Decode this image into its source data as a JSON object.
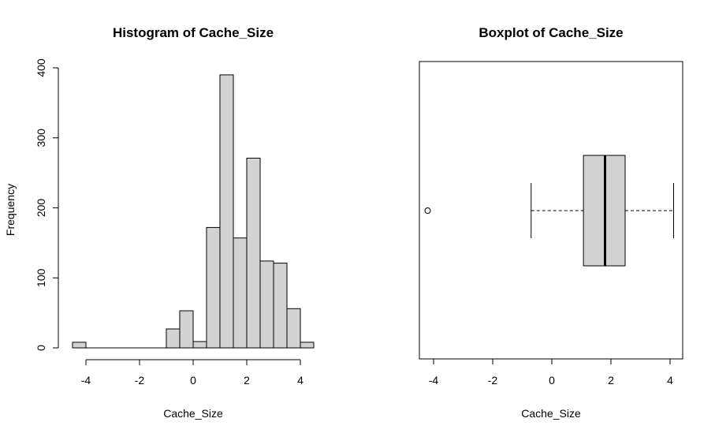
{
  "chart_data": [
    {
      "type": "bar",
      "chart_subtype": "histogram",
      "title": "Histogram of Cache_Size",
      "xlabel": "Cache_Size",
      "ylabel": "Frequency",
      "xlim": [
        -4.5,
        4.5
      ],
      "ylim": [
        0,
        400
      ],
      "xticks": [
        -4,
        -2,
        0,
        2,
        4
      ],
      "yticks": [
        0,
        100,
        200,
        300,
        400
      ],
      "bin_width": 0.5,
      "bins": [
        {
          "start": -4.5,
          "end": -4.0,
          "count": 8
        },
        {
          "start": -4.0,
          "end": -3.5,
          "count": 0
        },
        {
          "start": -3.5,
          "end": -3.0,
          "count": 0
        },
        {
          "start": -3.0,
          "end": -2.5,
          "count": 0
        },
        {
          "start": -2.5,
          "end": -2.0,
          "count": 0
        },
        {
          "start": -2.0,
          "end": -1.5,
          "count": 0
        },
        {
          "start": -1.5,
          "end": -1.0,
          "count": 0
        },
        {
          "start": -1.0,
          "end": -0.5,
          "count": 27
        },
        {
          "start": -0.5,
          "end": 0.0,
          "count": 53
        },
        {
          "start": 0.0,
          "end": 0.5,
          "count": 9
        },
        {
          "start": 0.5,
          "end": 1.0,
          "count": 172
        },
        {
          "start": 1.0,
          "end": 1.5,
          "count": 390
        },
        {
          "start": 1.5,
          "end": 2.0,
          "count": 157
        },
        {
          "start": 2.0,
          "end": 2.5,
          "count": 271
        },
        {
          "start": 2.5,
          "end": 3.0,
          "count": 124
        },
        {
          "start": 3.0,
          "end": 3.5,
          "count": 121
        },
        {
          "start": 3.5,
          "end": 4.0,
          "count": 56
        },
        {
          "start": 4.0,
          "end": 4.5,
          "count": 8
        }
      ],
      "bar_color": "#d3d3d3",
      "edge_color": "#000000",
      "grid": false
    },
    {
      "type": "boxplot",
      "orientation": "horizontal",
      "title": "Boxplot of Cache_Size",
      "xlabel": "Cache_Size",
      "xlim": [
        -4.5,
        4.5
      ],
      "xticks": [
        -4,
        -2,
        0,
        2,
        4
      ],
      "stats": {
        "whisker_low": -0.7,
        "q1": 1.07,
        "median": 1.8,
        "q3": 2.48,
        "whisker_high": 4.12
      },
      "outliers": [
        -4.2
      ],
      "box_color": "#d3d3d3",
      "grid": false
    }
  ]
}
